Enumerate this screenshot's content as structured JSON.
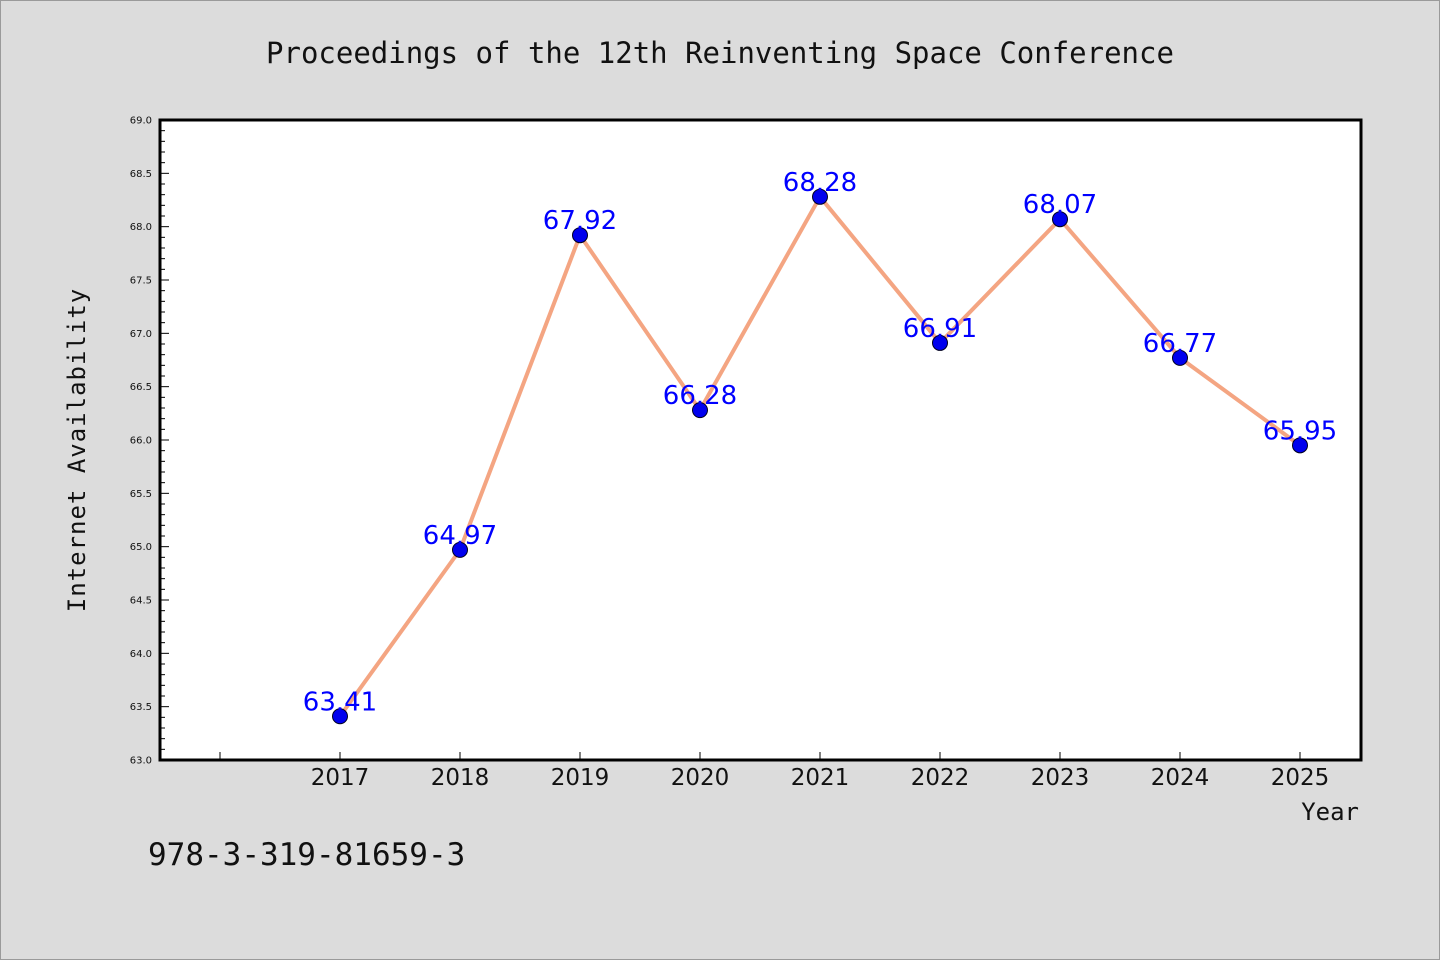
{
  "chart_data": {
    "type": "line",
    "title": "Proceedings of the 12th Reinventing Space Conference",
    "xlabel": "Year",
    "ylabel": "Internet Availability",
    "categories": [
      "2017",
      "2018",
      "2019",
      "2020",
      "2021",
      "2022",
      "2023",
      "2024",
      "2025"
    ],
    "series": [
      {
        "values": [
          63.41,
          64.97,
          67.92,
          66.28,
          68.28,
          66.91,
          68.07,
          66.77,
          65.95
        ],
        "labels": [
          "63.41",
          "64.97",
          "67.92",
          "66.28",
          "68.28",
          "66.91",
          "68.07",
          "66.77",
          "65.95"
        ]
      }
    ],
    "ylim": [
      63.0,
      69.0
    ],
    "yticks": [
      "63.0",
      "63.5",
      "64.0",
      "64.5",
      "65.0",
      "65.5",
      "66.0",
      "66.5",
      "67.0",
      "67.5",
      "68.0",
      "68.5",
      "69.0"
    ],
    "grid": false,
    "legend": "none",
    "colors": {
      "line": "#f4a582",
      "marker": "#0000ee",
      "data_label": "#0000ff",
      "plot_background": "#ffffff",
      "figure_background": "#dcdcdc"
    }
  },
  "footer": {
    "isbn": "978-3-319-81659-3"
  }
}
